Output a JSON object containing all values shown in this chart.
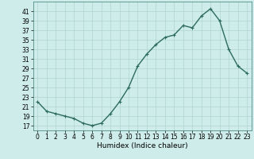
{
  "x": [
    0,
    1,
    2,
    3,
    4,
    5,
    6,
    7,
    8,
    9,
    10,
    11,
    12,
    13,
    14,
    15,
    16,
    17,
    18,
    19,
    20,
    21,
    22,
    23
  ],
  "y": [
    22,
    20,
    19.5,
    19,
    18.5,
    17.5,
    17,
    17.5,
    19.5,
    22,
    25,
    29.5,
    32,
    34,
    35.5,
    36,
    38,
    37.5,
    40,
    41.5,
    39,
    33,
    29.5,
    28
  ],
  "line_color": "#2d6b5e",
  "marker": "+",
  "marker_size": 3,
  "linewidth": 1.0,
  "xlabel": "Humidex (Indice chaleur)",
  "xlim": [
    -0.5,
    23.5
  ],
  "ylim": [
    16,
    43
  ],
  "yticks": [
    17,
    19,
    21,
    23,
    25,
    27,
    29,
    31,
    33,
    35,
    37,
    39,
    41
  ],
  "xticks": [
    0,
    1,
    2,
    3,
    4,
    5,
    6,
    7,
    8,
    9,
    10,
    11,
    12,
    13,
    14,
    15,
    16,
    17,
    18,
    19,
    20,
    21,
    22,
    23
  ],
  "bg_color": "#cdecea",
  "grid_color": "#b0d4d0",
  "tick_fontsize": 5.5,
  "xlabel_fontsize": 6.5
}
